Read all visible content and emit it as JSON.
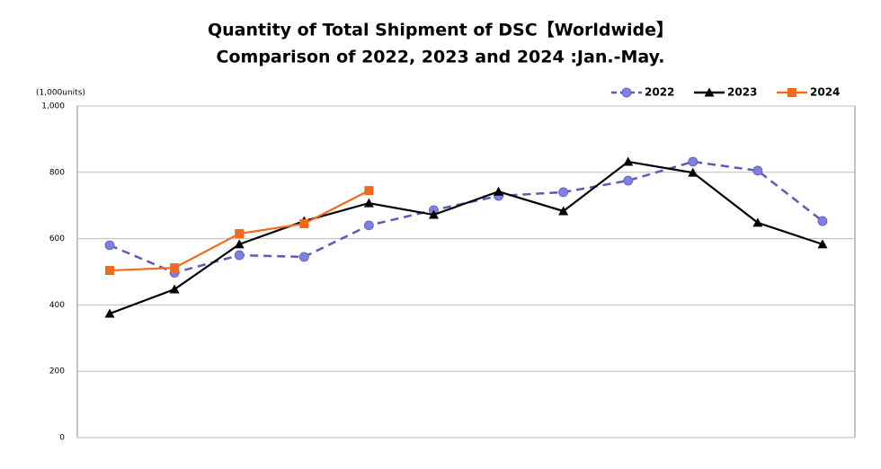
{
  "chart_data": {
    "type": "line",
    "title": [
      "Quantity of Total Shipment of DSC【Worldwide】",
      "Comparison of 2022, 2023 and 2024 :Jan.-May."
    ],
    "unit_label": "(1,000units)",
    "categories": [
      null,
      null,
      null,
      null,
      null,
      null,
      null,
      null,
      null,
      null,
      null,
      null
    ],
    "series": [
      {
        "name": "2022",
        "color": "#5a5ac0",
        "marker_color": "#8080e0",
        "marker": "circle",
        "dashed": true,
        "values": [
          580,
          497,
          550,
          545,
          640,
          686,
          729,
          740,
          775,
          832,
          805,
          653
        ]
      },
      {
        "name": "2023",
        "color": "#000000",
        "marker_color": "#000000",
        "marker": "triangle",
        "dashed": false,
        "values": [
          374,
          447,
          583,
          653,
          707,
          672,
          742,
          683,
          832,
          799,
          648,
          583
        ]
      },
      {
        "name": "2024",
        "color": "#f26a1b",
        "marker_color": "#f26a1b",
        "marker": "square",
        "dashed": false,
        "values": [
          504,
          512,
          615,
          645,
          745,
          null,
          null,
          null,
          null,
          null,
          null,
          null
        ]
      }
    ],
    "ylim": [
      0,
      1000
    ],
    "yticks": [
      0,
      200,
      400,
      600,
      800,
      {
        "value": 1000,
        "label": "1,000"
      }
    ],
    "grid": true,
    "legend": "top-right"
  }
}
